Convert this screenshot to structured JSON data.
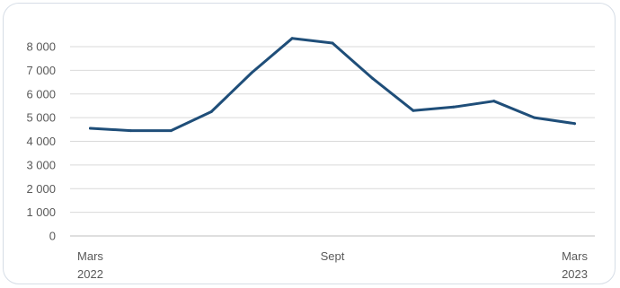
{
  "colors": {
    "line": "#1f4e79",
    "gridline": "#d9d9d9",
    "axis": "#bfbfbf",
    "text": "#595959",
    "frame": "#d6dde6"
  },
  "chart_data": {
    "type": "line",
    "title": "",
    "xlabel": "",
    "ylabel": "",
    "grid": true,
    "legend": "none",
    "ylim": [
      0,
      8000
    ],
    "ytick_values": [
      0,
      1000,
      2000,
      3000,
      4000,
      5000,
      6000,
      7000,
      8000
    ],
    "ytick_labels": [
      "0",
      "1 000",
      "2 000",
      "3 000",
      "4 000",
      "5 000",
      "6 000",
      "7 000",
      "8 000"
    ],
    "x_count": 13,
    "xtick_labels": [
      {
        "index": 0,
        "lines": [
          "Mars",
          "2022"
        ]
      },
      {
        "index": 6,
        "lines": [
          "Sept"
        ]
      },
      {
        "index": 12,
        "lines": [
          "Mars",
          "2023"
        ]
      }
    ],
    "series": [
      {
        "values": [
          4550,
          4450,
          4450,
          5250,
          6900,
          8350,
          8150,
          6650,
          5300,
          5450,
          5700,
          5000,
          4750
        ]
      }
    ]
  }
}
